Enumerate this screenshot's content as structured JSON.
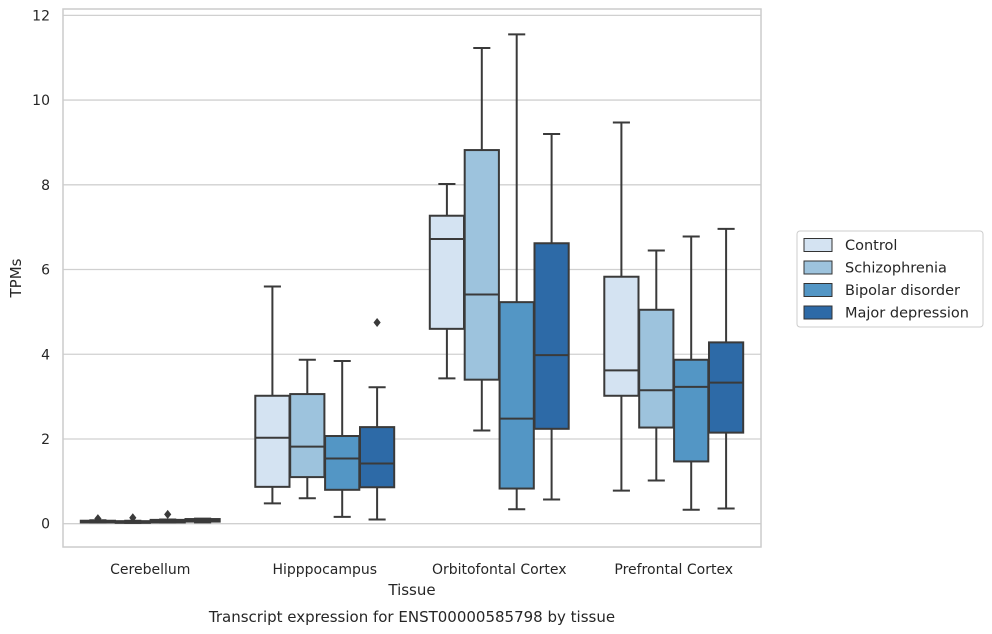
{
  "chart_data": {
    "type": "boxplot",
    "caption": "Transcript expression for ENST00000585798 by tissue",
    "xlabel": "Tissue",
    "ylabel": "TPMs",
    "ylim": [
      -0.55,
      12.15
    ],
    "yticks": [
      0,
      2,
      4,
      6,
      8,
      10,
      12
    ],
    "grid": true,
    "legend_position": "right",
    "colors": {
      "Control": "#d4e3f2",
      "Schizophrenia": "#9dc3dd",
      "Bipolar disorder": "#5396c5",
      "Major depression": "#2d6aa7",
      "edge": "#3a3a3a",
      "grid": "#d0d0d0"
    },
    "categories": [
      "Cerebellum",
      "Hipppocampus",
      "Orbitofontal Cortex",
      "Prefrontal Cortex"
    ],
    "series": [
      {
        "name": "Control",
        "boxes": [
          {
            "min": 0.03,
            "q1": 0.03,
            "median": 0.05,
            "q3": 0.07,
            "max": 0.08,
            "outliers": [
              0.12
            ]
          },
          {
            "min": 0.48,
            "q1": 0.87,
            "median": 2.03,
            "q3": 3.02,
            "max": 5.6,
            "outliers": []
          },
          {
            "min": 3.43,
            "q1": 4.6,
            "median": 6.72,
            "q3": 7.27,
            "max": 8.02,
            "outliers": []
          },
          {
            "min": 0.78,
            "q1": 3.02,
            "median": 3.62,
            "q3": 5.83,
            "max": 9.47,
            "outliers": []
          }
        ]
      },
      {
        "name": "Schizophrenia",
        "boxes": [
          {
            "min": 0.02,
            "q1": 0.02,
            "median": 0.04,
            "q3": 0.06,
            "max": 0.07,
            "outliers": [
              0.14
            ]
          },
          {
            "min": 0.6,
            "q1": 1.1,
            "median": 1.82,
            "q3": 3.06,
            "max": 3.87,
            "outliers": []
          },
          {
            "min": 2.2,
            "q1": 3.4,
            "median": 5.41,
            "q3": 8.82,
            "max": 11.23,
            "outliers": []
          },
          {
            "min": 1.02,
            "q1": 2.27,
            "median": 3.15,
            "q3": 5.05,
            "max": 6.45,
            "outliers": []
          }
        ]
      },
      {
        "name": "Bipolar disorder",
        "boxes": [
          {
            "min": 0.03,
            "q1": 0.03,
            "median": 0.06,
            "q3": 0.09,
            "max": 0.1,
            "outliers": [
              0.22
            ]
          },
          {
            "min": 0.16,
            "q1": 0.8,
            "median": 1.54,
            "q3": 2.07,
            "max": 3.84,
            "outliers": []
          },
          {
            "min": 0.34,
            "q1": 0.83,
            "median": 2.48,
            "q3": 5.23,
            "max": 11.55,
            "outliers": []
          },
          {
            "min": 0.33,
            "q1": 1.47,
            "median": 3.23,
            "q3": 3.87,
            "max": 6.78,
            "outliers": []
          }
        ]
      },
      {
        "name": "Major depression",
        "boxes": [
          {
            "min": 0.03,
            "q1": 0.05,
            "median": 0.08,
            "q3": 0.11,
            "max": 0.12,
            "outliers": []
          },
          {
            "min": 0.1,
            "q1": 0.86,
            "median": 1.42,
            "q3": 2.28,
            "max": 3.22,
            "outliers": [
              4.75
            ]
          },
          {
            "min": 0.57,
            "q1": 2.24,
            "median": 3.98,
            "q3": 6.62,
            "max": 9.2,
            "outliers": []
          },
          {
            "min": 0.36,
            "q1": 2.15,
            "median": 3.33,
            "q3": 4.28,
            "max": 6.96,
            "outliers": []
          }
        ]
      }
    ]
  }
}
